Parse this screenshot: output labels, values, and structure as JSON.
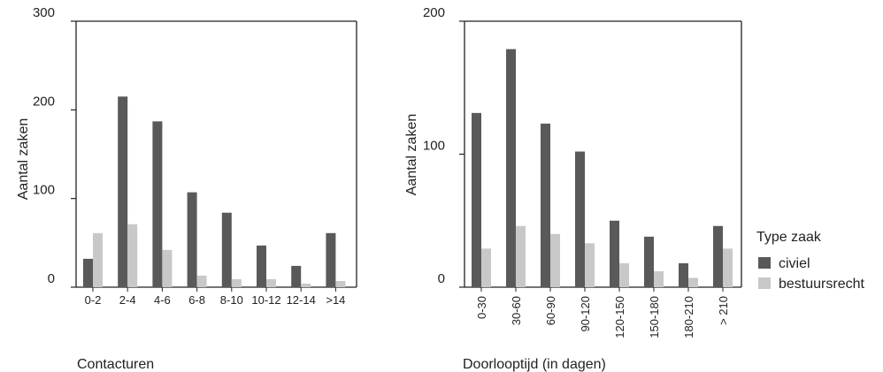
{
  "chart_data": [
    {
      "type": "bar",
      "xlabel": "Contacturen",
      "ylabel": "Aantal zaken",
      "ylim": [
        0,
        300
      ],
      "yticks": [
        0,
        100,
        200,
        300
      ],
      "categories": [
        "0-2",
        "2-4",
        "4-6",
        "6-8",
        "8-10",
        "10-12",
        "12-14",
        ">14"
      ],
      "series": [
        {
          "name": "civiel",
          "values": [
            32,
            215,
            187,
            107,
            84,
            47,
            24,
            61
          ]
        },
        {
          "name": "bestuursrecht",
          "values": [
            61,
            71,
            42,
            13,
            9,
            9,
            4,
            7
          ]
        }
      ],
      "grid": false
    },
    {
      "type": "bar",
      "xlabel": "Doorlooptijd (in dagen)",
      "ylabel": "Aantal zaken",
      "ylim": [
        0,
        200
      ],
      "yticks": [
        0,
        100,
        200
      ],
      "categories": [
        "0-30",
        "30-60",
        "60-90",
        "90-120",
        "120-150",
        "150-180",
        "180-210",
        "> 210"
      ],
      "series": [
        {
          "name": "civiel",
          "values": [
            131,
            179,
            123,
            102,
            50,
            38,
            18,
            46
          ]
        },
        {
          "name": "bestuursrecht",
          "values": [
            29,
            46,
            40,
            33,
            18,
            12,
            7,
            29
          ]
        }
      ],
      "grid": false
    }
  ],
  "legend": {
    "title": "Type zaak",
    "placement": "right",
    "items": [
      {
        "label": "civiel",
        "color": "#595959"
      },
      {
        "label": "bestuursrecht",
        "color": "#c8c8c8"
      }
    ]
  },
  "colors": {
    "civiel": "#595959",
    "bestuursrecht": "#c8c8c8"
  }
}
